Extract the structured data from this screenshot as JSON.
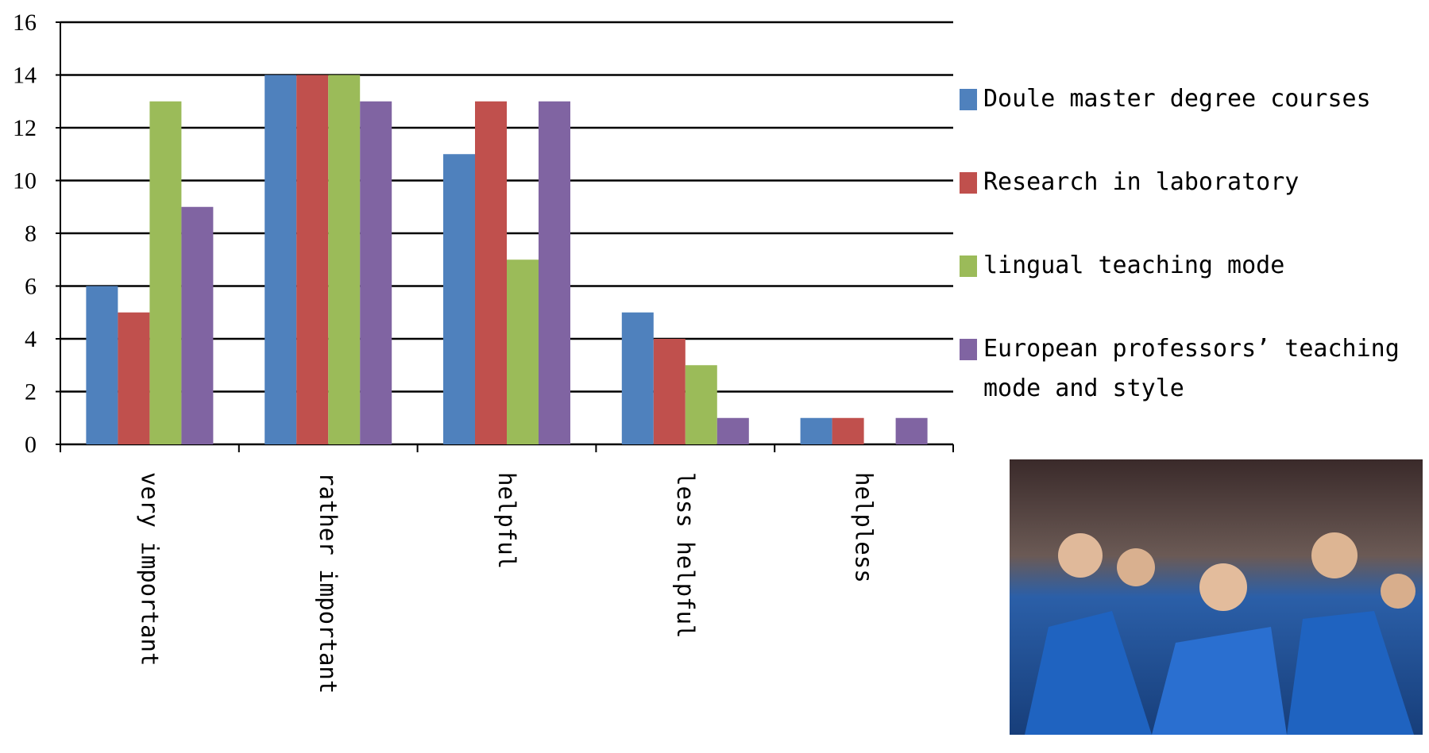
{
  "chart_data": {
    "type": "bar",
    "categories": [
      "very important",
      "rather important",
      "helpful",
      "less helpful",
      "helpless"
    ],
    "series": [
      {
        "name": "Doule master degree courses",
        "color": "#4f81bd",
        "values": [
          6,
          14,
          11,
          5,
          1
        ]
      },
      {
        "name": "Research in laboratory",
        "color": "#c0504d",
        "values": [
          5,
          14,
          13,
          4,
          1
        ]
      },
      {
        "name": "lingual teaching mode",
        "color": "#9bbb59",
        "values": [
          13,
          14,
          7,
          3,
          0
        ]
      },
      {
        "name": "European professors’ teaching mode and style",
        "color": "#8064a2",
        "values": [
          9,
          13,
          13,
          1,
          1
        ]
      }
    ],
    "ylim": [
      0,
      16
    ],
    "yticks": [
      0,
      2,
      4,
      6,
      8,
      10,
      12,
      14,
      16
    ],
    "grid": true,
    "legend": "right"
  }
}
